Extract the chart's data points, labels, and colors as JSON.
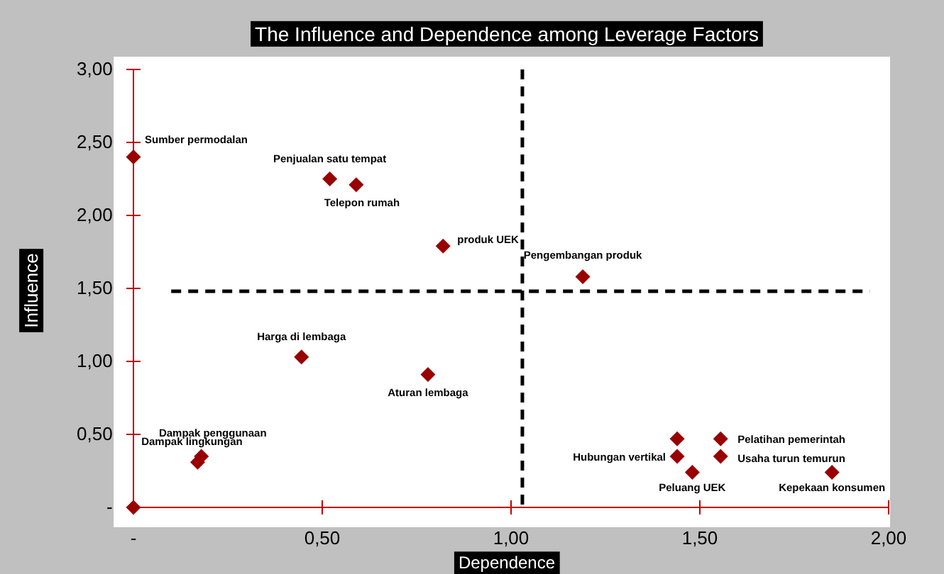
{
  "chart_data": {
    "type": "scatter",
    "title": "The Influence and Dependence among Leverage Factors",
    "xlabel": "Dependence",
    "ylabel": "Influence",
    "x": [
      0,
      0.52,
      0.59,
      0.82,
      1.19,
      0.445,
      0.78,
      0.17,
      0.18,
      0,
      1.44,
      1.555,
      1.44,
      1.555,
      1.48,
      1.85
    ],
    "series": [
      {
        "color": "#990000",
        "values": [
          2.4,
          2.25,
          2.21,
          1.79,
          1.58,
          1.03,
          0.91,
          0.31,
          0.35,
          0,
          0.47,
          0.47,
          0.35,
          0.35,
          0.24,
          0.24
        ]
      }
    ],
    "value_labels": [
      "Sumber permodalan",
      "Penjualan satu tempat",
      "Telepon rumah",
      "produk UEK",
      "Pengembangan produk",
      "Harga di lembaga",
      "Aturan lembaga",
      "Dampak lingkungan",
      "Dampak penggunaan",
      null,
      null,
      "Pelatihan pemerintah",
      "Hubungan vertikal",
      "Usaha turun temurun",
      "Peluang UEK",
      "Kepekaan konsumen"
    ],
    "xlim": [
      0,
      2
    ],
    "xticks": [
      {
        "value": 0,
        "label": "-"
      },
      {
        "value": 0.5,
        "label": "0,50"
      },
      {
        "value": 1,
        "label": "1,00"
      },
      {
        "value": 1.5,
        "label": "1,50"
      },
      {
        "value": 2,
        "label": "2,00"
      }
    ],
    "ylim": [
      0,
      3
    ],
    "yticks": [
      {
        "value": 0,
        "label": "-"
      },
      {
        "value": 0.5,
        "label": "0,50"
      },
      {
        "value": 1,
        "label": "1,00"
      },
      {
        "value": 1.5,
        "label": "1,50"
      },
      {
        "value": 2,
        "label": "2,00"
      },
      {
        "value": 2.5,
        "label": "2,50"
      },
      {
        "value": 3,
        "label": "3,00"
      }
    ],
    "ref_lines": [
      {
        "axis": "x",
        "value": 1.03,
        "line_style": "dashed"
      },
      {
        "axis": "y",
        "value": 1.48,
        "line_style": "dashed"
      }
    ],
    "marker": "diamond",
    "grid": false
  }
}
